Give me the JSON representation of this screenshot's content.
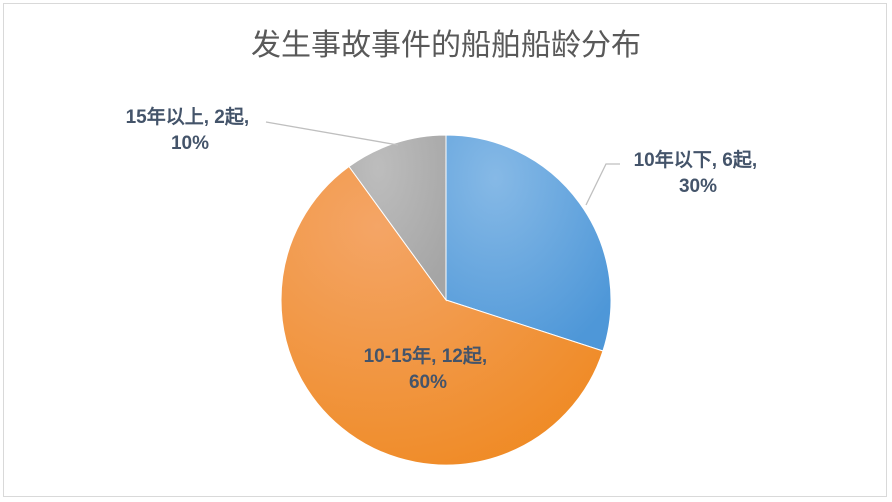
{
  "chart_data": {
    "type": "pie",
    "title": "发生事故事件的船舶船龄分布",
    "categories": [
      "10年以下",
      "10-15年",
      "15年以上"
    ],
    "values": [
      6,
      12,
      2
    ],
    "percents": [
      30,
      60,
      10
    ],
    "colors": [
      "#5b9bd5",
      "#ed7d31",
      "#a5a5a5"
    ],
    "labels": [
      {
        "line1": "10年以下, 6起,",
        "line2": "30%"
      },
      {
        "line1": "10-15年, 12起,",
        "line2": "60%"
      },
      {
        "line1": "15年以上, 2起,",
        "line2": "10%"
      }
    ],
    "start_angle": "12 o'clock",
    "direction": "clockwise",
    "legend": "none"
  }
}
